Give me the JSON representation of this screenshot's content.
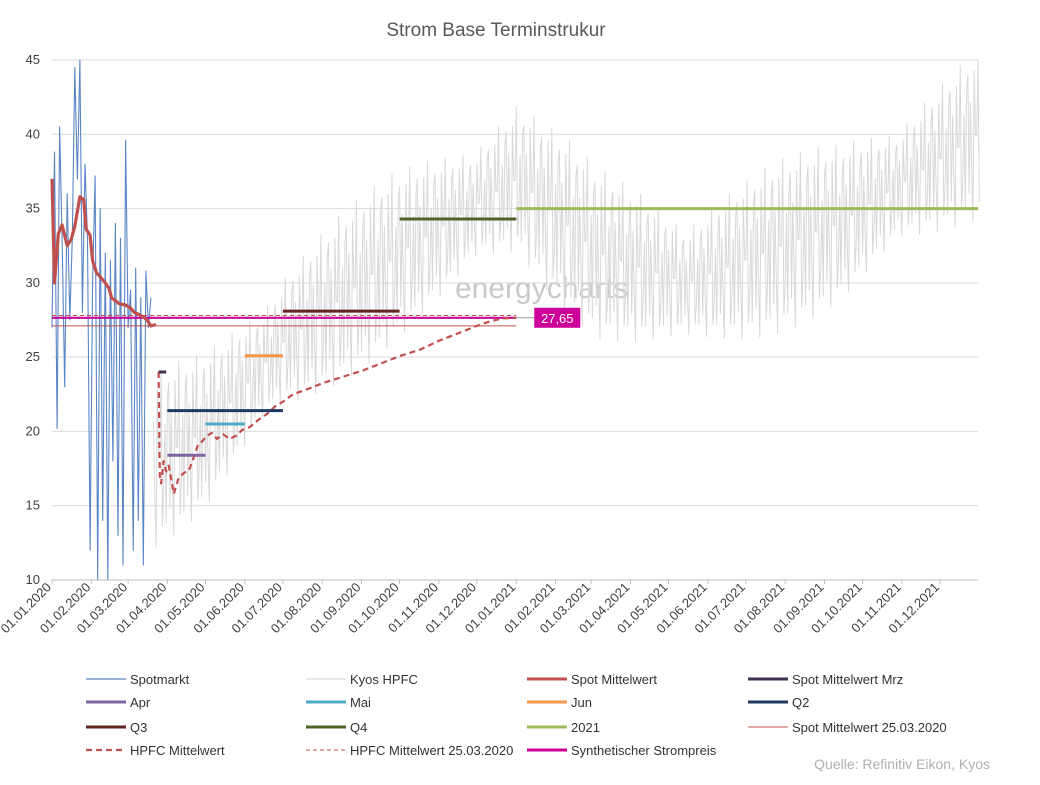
{
  "source_note": "Quelle: Refinitiv Eikon, Kyos",
  "watermark_text": "energycharts",
  "chart_data": {
    "type": "line",
    "title": "Strom Base Terminstrukur",
    "xlabel": "",
    "ylabel": "",
    "ylim": [
      10,
      45
    ],
    "yticks": [
      10,
      15,
      20,
      25,
      30,
      35,
      40,
      45
    ],
    "x_tick_labels": [
      "01.01.2020",
      "01.02.2020",
      "01.03.2020",
      "01.04.2020",
      "01.05.2020",
      "01.06.2020",
      "01.07.2020",
      "01.08.2020",
      "01.09.2020",
      "01.10.2020",
      "01.11.2020",
      "01.12.2020",
      "01.01.2021",
      "01.02.2021",
      "01.03.2021",
      "01.04.2021",
      "01.05.2021",
      "01.06.2021",
      "01.07.2021",
      "01.08.2021",
      "01.09.2021",
      "01.10.2021",
      "01.11.2021",
      "01.12.2021"
    ],
    "x_tick_days": [
      0,
      31,
      60,
      91,
      121,
      152,
      182,
      213,
      244,
      274,
      305,
      335,
      366,
      397,
      425,
      456,
      486,
      517,
      547,
      578,
      609,
      639,
      670,
      700
    ],
    "x_range_days": [
      0,
      730
    ],
    "grid": "horizontal",
    "legend_position": "bottom",
    "annotations": [
      {
        "text": "27,65",
        "x_day": 366,
        "y": 27.65,
        "color": "#cc0099"
      }
    ],
    "series": [
      {
        "name": "Spotmarkt",
        "color": "#5b86c5",
        "style": "thin",
        "points": [
          [
            0,
            27
          ],
          [
            2,
            38.8
          ],
          [
            4,
            20.2
          ],
          [
            6,
            40.5
          ],
          [
            8,
            33
          ],
          [
            10,
            23
          ],
          [
            12,
            36
          ],
          [
            14,
            27.5
          ],
          [
            16,
            33
          ],
          [
            18,
            44.5
          ],
          [
            20,
            37
          ],
          [
            22,
            45
          ],
          [
            24,
            28
          ],
          [
            26,
            38
          ],
          [
            28,
            33
          ],
          [
            30,
            12
          ],
          [
            32,
            30
          ],
          [
            34,
            37.2
          ],
          [
            36,
            10
          ],
          [
            38,
            35
          ],
          [
            40,
            14
          ],
          [
            42,
            32
          ],
          [
            44,
            10
          ],
          [
            46,
            31.5
          ],
          [
            48,
            18
          ],
          [
            50,
            34
          ],
          [
            52,
            13
          ],
          [
            54,
            33
          ],
          [
            56,
            11
          ],
          [
            58,
            39.6
          ],
          [
            60,
            27
          ],
          [
            62,
            29.5
          ],
          [
            64,
            12
          ],
          [
            66,
            31
          ],
          [
            68,
            14
          ],
          [
            70,
            29
          ],
          [
            72,
            11
          ],
          [
            74,
            30.8
          ],
          [
            76,
            27
          ],
          [
            78,
            29
          ]
        ]
      },
      {
        "name": "Kyos HPFC",
        "color": "#d9d9d9",
        "style": "thin",
        "generator": "hpfc",
        "from_day": 80,
        "to_day": 730
      },
      {
        "name": "Spot Mittelwert",
        "color": "#c0504d",
        "style": "thick",
        "points": [
          [
            0,
            37
          ],
          [
            2,
            30
          ],
          [
            5,
            33.3
          ],
          [
            8,
            33.9
          ],
          [
            12,
            32.5
          ],
          [
            15,
            32.9
          ],
          [
            18,
            33.8
          ],
          [
            22,
            35.8
          ],
          [
            25,
            35.6
          ],
          [
            27,
            33.6
          ],
          [
            30,
            33.2
          ],
          [
            32,
            31.5
          ],
          [
            35,
            30.7
          ],
          [
            38,
            30.4
          ],
          [
            42,
            30
          ],
          [
            45,
            29.6
          ],
          [
            47,
            29
          ],
          [
            50,
            28.8
          ],
          [
            53,
            28.6
          ],
          [
            58,
            28.5
          ],
          [
            62,
            28.3
          ],
          [
            65,
            28
          ],
          [
            68,
            27.9
          ],
          [
            72,
            27.7
          ],
          [
            75,
            27.5
          ],
          [
            78,
            27.1
          ],
          [
            82,
            27.2
          ]
        ]
      },
      {
        "name": "Spot Mittelwert Mrz",
        "color": "#403151",
        "style": "bar",
        "segment": [
          84,
          90,
          24
        ]
      },
      {
        "name": "Apr",
        "color": "#8064a2",
        "style": "bar",
        "segment": [
          91,
          121,
          18.4
        ]
      },
      {
        "name": "Mai",
        "color": "#4bacc6",
        "style": "bar",
        "segment": [
          121,
          152,
          20.5
        ]
      },
      {
        "name": "Jun",
        "color": "#f79646",
        "style": "bar",
        "segment": [
          152,
          182,
          25.1
        ]
      },
      {
        "name": "Q2",
        "color": "#1f3864",
        "style": "bar",
        "segment": [
          91,
          182,
          21.4
        ]
      },
      {
        "name": "Q3",
        "color": "#632523",
        "style": "bar",
        "segment": [
          182,
          274,
          28.1
        ]
      },
      {
        "name": "Q4",
        "color": "#4f6228",
        "style": "bar",
        "segment": [
          274,
          366,
          34.3
        ]
      },
      {
        "name": "2021",
        "color": "#9bbb59",
        "style": "bar",
        "segment": [
          366,
          730,
          35
        ]
      },
      {
        "name": "Spot Mittelwert 25.03.2020",
        "color": "#c0504d",
        "style": "ref",
        "segment": [
          0,
          366,
          27.1
        ]
      },
      {
        "name": "HPFC Mittelwert",
        "color": "#c0504d",
        "style": "dashed",
        "points": [
          [
            84,
            24
          ],
          [
            85,
            17
          ],
          [
            86,
            16.5
          ],
          [
            88,
            18
          ],
          [
            90,
            17.3
          ],
          [
            92,
            17.7
          ],
          [
            94,
            16.8
          ],
          [
            96,
            15.8
          ],
          [
            100,
            16.9
          ],
          [
            104,
            17.2
          ],
          [
            108,
            17.4
          ],
          [
            112,
            18.3
          ],
          [
            115,
            19.1
          ],
          [
            118,
            19.3
          ],
          [
            122,
            19.7
          ],
          [
            126,
            19.9
          ],
          [
            130,
            19.5
          ],
          [
            135,
            19.8
          ],
          [
            140,
            19.5
          ],
          [
            145,
            19.7
          ],
          [
            150,
            20.1
          ],
          [
            156,
            20.3
          ],
          [
            163,
            20.8
          ],
          [
            170,
            21.2
          ],
          [
            176,
            21.7
          ],
          [
            182,
            22
          ],
          [
            190,
            22.5
          ],
          [
            200,
            22.8
          ],
          [
            215,
            23.3
          ],
          [
            230,
            23.7
          ],
          [
            245,
            24.1
          ],
          [
            260,
            24.6
          ],
          [
            275,
            25.1
          ],
          [
            290,
            25.5
          ],
          [
            305,
            26.1
          ],
          [
            320,
            26.6
          ],
          [
            335,
            27.1
          ],
          [
            345,
            27.4
          ],
          [
            355,
            27.6
          ],
          [
            366,
            27.65
          ]
        ]
      },
      {
        "name": "HPFC Mittelwert 25.03.2020",
        "color": "#c0504d",
        "style": "ref-dashed",
        "segment": [
          0,
          366,
          27.8
        ]
      },
      {
        "name": "Synthetischer Strompreis",
        "color": "#cc0099",
        "style": "thick",
        "segment": [
          0,
          366,
          27.65
        ]
      }
    ]
  }
}
